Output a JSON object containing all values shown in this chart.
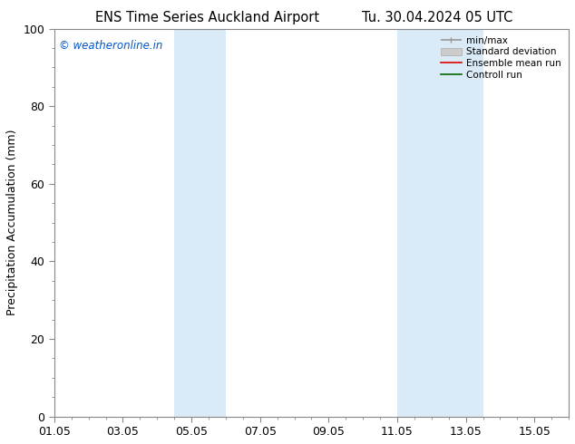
{
  "title_left": "ENS Time Series Auckland Airport",
  "title_right": "Tu. 30.04.2024 05 UTC",
  "ylabel": "Precipitation Accumulation (mm)",
  "watermark": "© weatheronline.in",
  "watermark_color": "#0055cc",
  "ylim": [
    0,
    100
  ],
  "yticks": [
    0,
    20,
    40,
    60,
    80,
    100
  ],
  "xtick_labels": [
    "01.05",
    "03.05",
    "05.05",
    "07.05",
    "09.05",
    "11.05",
    "13.05",
    "15.05"
  ],
  "xtick_days": [
    0,
    2,
    4,
    6,
    8,
    10,
    12,
    14
  ],
  "shaded_bands": [
    {
      "start_day": 3.5,
      "end_day": 5.0,
      "color": "#daeaf7"
    },
    {
      "start_day": 10.0,
      "end_day": 12.5,
      "color": "#daeaf7"
    }
  ],
  "bg_color": "#ffffff",
  "grid_color": "#bbbbbb",
  "spine_color": "#888888",
  "font_size": 9,
  "title_font_size": 10.5,
  "watermark_font_size": 8.5
}
